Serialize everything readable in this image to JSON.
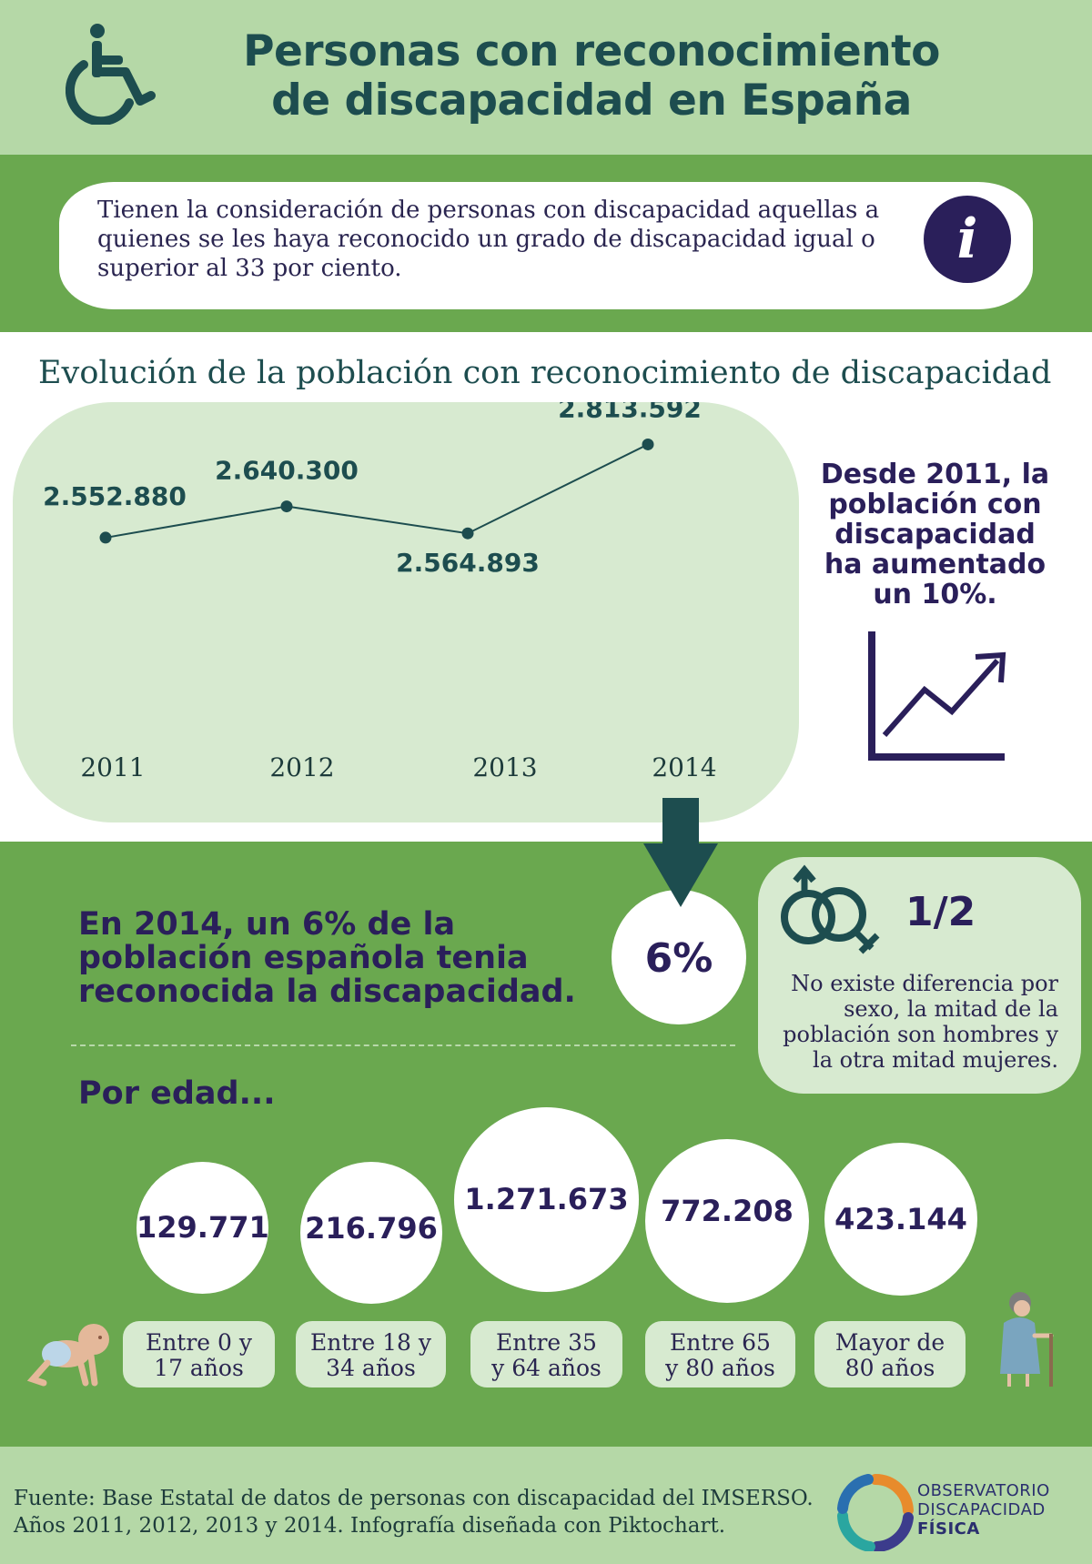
{
  "header": {
    "title_line1": "Personas con reconocimiento",
    "title_line2": "de discapacidad en España",
    "icon": "wheelchair-icon",
    "background_color": "#b5d8a7",
    "title_color": "#1d4d4f"
  },
  "definition": {
    "text": "Tienen la consideración de personas con discapacidad aquellas a quienes se les haya reconocido un grado de discapacidad igual o superior al 33 por ciento.",
    "icon_glyph": "i",
    "icon": "info-icon"
  },
  "evolution": {
    "heading": "Evolución de la población con reconocimiento de discapacidad",
    "summary_line1": "Desde 2011, la",
    "summary_line2": "población con",
    "summary_line3": "discapacidad",
    "summary_line4": "ha aumentado",
    "summary_line5": "un 10%.",
    "summary_icon": "trend-up-chart-icon"
  },
  "chart_data": {
    "type": "line",
    "x": [
      "2011",
      "2012",
      "2013",
      "2014"
    ],
    "series": [
      {
        "values": [
          2552880,
          2640300,
          2564893,
          2813592
        ]
      }
    ],
    "data_labels": [
      "2.552.880",
      "2.640.300",
      "2.564.893",
      "2.813.592"
    ],
    "title": "",
    "xlabel": "",
    "ylabel": "",
    "grid": false,
    "line_color": "#1d4d4f"
  },
  "stats": {
    "pct_value": "6%",
    "pct_statement_line1": "En 2014, un 6% de la",
    "pct_statement_line2": "población española tenia",
    "pct_statement_line3": "reconocida la discapacidad.",
    "arrow_icon": "down-arrow-icon",
    "sex_icon": "gender-symbols-icon",
    "sex_ratio": "1/2",
    "sex_text_line1": "No existe diferencia por",
    "sex_text_line2": "sexo, la mitad de la",
    "sex_text_line3": "población son hombres y",
    "sex_text_line4": "la otra mitad mujeres."
  },
  "age": {
    "heading": "Por edad...",
    "groups": [
      {
        "value": "129.771",
        "label_line1": "Entre 0 y",
        "label_line2": "17 años",
        "count": 129771
      },
      {
        "value": "216.796",
        "label_line1": "Entre 18 y",
        "label_line2": "34 años",
        "count": 216796
      },
      {
        "value": "1.271.673",
        "label_line1": "Entre 35",
        "label_line2": "y 64 años",
        "count": 1271673
      },
      {
        "value": "772.208",
        "label_line1": "Entre 65",
        "label_line2": "y 80 años",
        "count": 772208
      },
      {
        "value": "423.144",
        "label_line1": "Mayor de",
        "label_line2": "80 años",
        "count": 423144
      }
    ],
    "left_icon": "baby-crawling-icon",
    "right_icon": "elderly-person-icon"
  },
  "footer": {
    "source_line1": "Fuente: Base Estatal de datos de personas con discapacidad del IMSERSO.",
    "source_line2": "Años 2011, 2012, 2013 y 2014. Infografía diseñada con Piktochart.",
    "logo_line1": "OBSERVATORIO",
    "logo_line2": "DISCAPACIDAD",
    "logo_line3": "FÍSICA",
    "logo_icon": "observatorio-logo-icon"
  },
  "colors": {
    "light_green": "#b5d8a7",
    "mid_green": "#6aa84f",
    "pale_green": "#d7ead0",
    "navy": "#2a1f5a",
    "teal_dark": "#1d4d4f"
  }
}
